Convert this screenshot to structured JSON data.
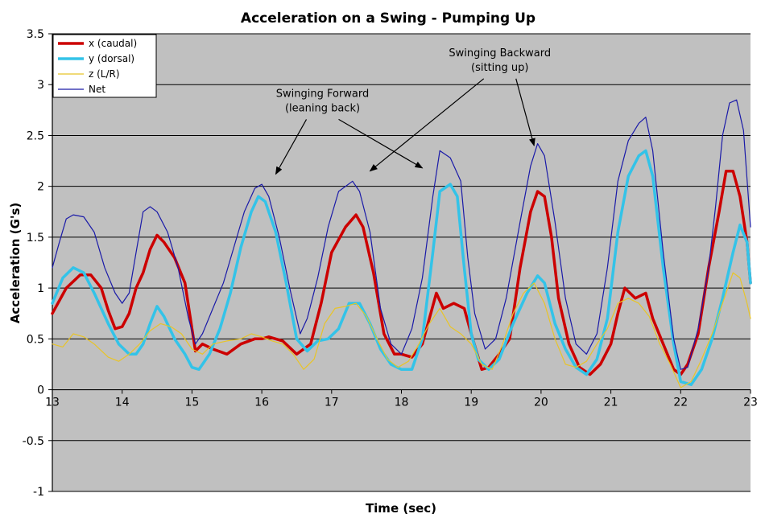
{
  "chart_data": {
    "type": "line",
    "title": "Acceleration on a Swing - Pumping Up",
    "xlabel": "Time (sec)",
    "ylabel": "Acceleration (G's)",
    "xlim": [
      13,
      23
    ],
    "ylim": [
      -1,
      3.5
    ],
    "xticks": [
      13,
      14,
      15,
      16,
      17,
      18,
      19,
      20,
      21,
      22,
      23
    ],
    "yticks": [
      -1,
      -0.5,
      0,
      0.5,
      1,
      1.5,
      2,
      2.5,
      3,
      3.5
    ],
    "ytick_labels": [
      "-1",
      "-0.5",
      "0",
      "0.5",
      "1",
      "1.5",
      "2",
      "2.5",
      "3",
      "3.5"
    ],
    "grid": "horizontal",
    "plot_background": "#c0c0c0",
    "legend_position": "top-left",
    "series": [
      {
        "name": "x (caudal)",
        "color": "#cc0000",
        "width": 3.5,
        "points": [
          [
            13.0,
            0.75
          ],
          [
            13.2,
            1.0
          ],
          [
            13.4,
            1.13
          ],
          [
            13.55,
            1.13
          ],
          [
            13.7,
            1.0
          ],
          [
            13.8,
            0.78
          ],
          [
            13.9,
            0.6
          ],
          [
            14.0,
            0.62
          ],
          [
            14.1,
            0.75
          ],
          [
            14.2,
            1.0
          ],
          [
            14.3,
            1.15
          ],
          [
            14.4,
            1.38
          ],
          [
            14.5,
            1.52
          ],
          [
            14.6,
            1.45
          ],
          [
            14.75,
            1.3
          ],
          [
            14.9,
            1.05
          ],
          [
            15.0,
            0.6
          ],
          [
            15.05,
            0.38
          ],
          [
            15.15,
            0.45
          ],
          [
            15.3,
            0.4
          ],
          [
            15.5,
            0.35
          ],
          [
            15.7,
            0.45
          ],
          [
            15.9,
            0.5
          ],
          [
            16.0,
            0.5
          ],
          [
            16.1,
            0.52
          ],
          [
            16.3,
            0.48
          ],
          [
            16.5,
            0.35
          ],
          [
            16.7,
            0.45
          ],
          [
            16.85,
            0.85
          ],
          [
            17.0,
            1.35
          ],
          [
            17.2,
            1.6
          ],
          [
            17.35,
            1.72
          ],
          [
            17.45,
            1.6
          ],
          [
            17.6,
            1.15
          ],
          [
            17.75,
            0.55
          ],
          [
            17.9,
            0.35
          ],
          [
            18.0,
            0.35
          ],
          [
            18.15,
            0.32
          ],
          [
            18.3,
            0.45
          ],
          [
            18.4,
            0.7
          ],
          [
            18.5,
            0.95
          ],
          [
            18.6,
            0.8
          ],
          [
            18.75,
            0.85
          ],
          [
            18.9,
            0.8
          ],
          [
            19.0,
            0.55
          ],
          [
            19.15,
            0.2
          ],
          [
            19.25,
            0.22
          ],
          [
            19.4,
            0.35
          ],
          [
            19.55,
            0.5
          ],
          [
            19.7,
            1.2
          ],
          [
            19.85,
            1.75
          ],
          [
            19.95,
            1.95
          ],
          [
            20.05,
            1.9
          ],
          [
            20.15,
            1.5
          ],
          [
            20.25,
            0.9
          ],
          [
            20.4,
            0.45
          ],
          [
            20.55,
            0.22
          ],
          [
            20.7,
            0.15
          ],
          [
            20.85,
            0.25
          ],
          [
            21.0,
            0.45
          ],
          [
            21.1,
            0.75
          ],
          [
            21.2,
            1.0
          ],
          [
            21.35,
            0.9
          ],
          [
            21.5,
            0.95
          ],
          [
            21.6,
            0.7
          ],
          [
            21.75,
            0.45
          ],
          [
            21.9,
            0.2
          ],
          [
            22.0,
            0.15
          ],
          [
            22.1,
            0.25
          ],
          [
            22.25,
            0.55
          ],
          [
            22.4,
            1.2
          ],
          [
            22.55,
            1.75
          ],
          [
            22.65,
            2.15
          ],
          [
            22.75,
            2.15
          ],
          [
            22.85,
            1.9
          ],
          [
            22.95,
            1.45
          ],
          [
            23.0,
            1.05
          ]
        ]
      },
      {
        "name": "y (dorsal)",
        "color": "#33c3e8",
        "width": 3.5,
        "points": [
          [
            13.0,
            0.85
          ],
          [
            13.15,
            1.1
          ],
          [
            13.3,
            1.2
          ],
          [
            13.45,
            1.15
          ],
          [
            13.6,
            0.95
          ],
          [
            13.8,
            0.65
          ],
          [
            13.95,
            0.45
          ],
          [
            14.1,
            0.35
          ],
          [
            14.2,
            0.35
          ],
          [
            14.3,
            0.45
          ],
          [
            14.4,
            0.65
          ],
          [
            14.5,
            0.82
          ],
          [
            14.6,
            0.72
          ],
          [
            14.75,
            0.5
          ],
          [
            14.9,
            0.35
          ],
          [
            15.0,
            0.22
          ],
          [
            15.1,
            0.2
          ],
          [
            15.25,
            0.35
          ],
          [
            15.4,
            0.6
          ],
          [
            15.55,
            0.95
          ],
          [
            15.7,
            1.4
          ],
          [
            15.85,
            1.75
          ],
          [
            15.95,
            1.9
          ],
          [
            16.05,
            1.85
          ],
          [
            16.2,
            1.55
          ],
          [
            16.35,
            1.05
          ],
          [
            16.5,
            0.5
          ],
          [
            16.65,
            0.38
          ],
          [
            16.8,
            0.48
          ],
          [
            16.95,
            0.5
          ],
          [
            17.1,
            0.6
          ],
          [
            17.25,
            0.85
          ],
          [
            17.4,
            0.85
          ],
          [
            17.55,
            0.65
          ],
          [
            17.7,
            0.4
          ],
          [
            17.85,
            0.25
          ],
          [
            18.0,
            0.2
          ],
          [
            18.15,
            0.2
          ],
          [
            18.3,
            0.5
          ],
          [
            18.45,
            1.35
          ],
          [
            18.55,
            1.95
          ],
          [
            18.7,
            2.02
          ],
          [
            18.8,
            1.9
          ],
          [
            18.9,
            1.2
          ],
          [
            19.0,
            0.55
          ],
          [
            19.1,
            0.3
          ],
          [
            19.25,
            0.2
          ],
          [
            19.4,
            0.3
          ],
          [
            19.6,
            0.65
          ],
          [
            19.8,
            0.95
          ],
          [
            19.95,
            1.12
          ],
          [
            20.05,
            1.05
          ],
          [
            20.2,
            0.65
          ],
          [
            20.35,
            0.4
          ],
          [
            20.5,
            0.22
          ],
          [
            20.65,
            0.15
          ],
          [
            20.8,
            0.3
          ],
          [
            20.95,
            0.7
          ],
          [
            21.1,
            1.55
          ],
          [
            21.25,
            2.1
          ],
          [
            21.4,
            2.3
          ],
          [
            21.5,
            2.35
          ],
          [
            21.6,
            2.1
          ],
          [
            21.75,
            1.2
          ],
          [
            21.9,
            0.45
          ],
          [
            22.0,
            0.08
          ],
          [
            22.15,
            0.05
          ],
          [
            22.3,
            0.2
          ],
          [
            22.45,
            0.5
          ],
          [
            22.6,
            0.9
          ],
          [
            22.75,
            1.35
          ],
          [
            22.85,
            1.62
          ],
          [
            22.95,
            1.45
          ],
          [
            23.0,
            1.05
          ]
        ]
      },
      {
        "name": "z (L/R)",
        "color": "#e8c428",
        "width": 1.2,
        "points": [
          [
            13.0,
            0.45
          ],
          [
            13.15,
            0.42
          ],
          [
            13.3,
            0.55
          ],
          [
            13.45,
            0.52
          ],
          [
            13.6,
            0.45
          ],
          [
            13.8,
            0.32
          ],
          [
            13.95,
            0.28
          ],
          [
            14.1,
            0.35
          ],
          [
            14.25,
            0.45
          ],
          [
            14.4,
            0.58
          ],
          [
            14.55,
            0.65
          ],
          [
            14.7,
            0.62
          ],
          [
            14.85,
            0.55
          ],
          [
            15.0,
            0.4
          ],
          [
            15.15,
            0.35
          ],
          [
            15.3,
            0.45
          ],
          [
            15.5,
            0.48
          ],
          [
            15.7,
            0.5
          ],
          [
            15.85,
            0.55
          ],
          [
            16.0,
            0.52
          ],
          [
            16.15,
            0.48
          ],
          [
            16.3,
            0.45
          ],
          [
            16.45,
            0.35
          ],
          [
            16.6,
            0.2
          ],
          [
            16.75,
            0.3
          ],
          [
            16.9,
            0.65
          ],
          [
            17.05,
            0.8
          ],
          [
            17.2,
            0.82
          ],
          [
            17.35,
            0.85
          ],
          [
            17.5,
            0.72
          ],
          [
            17.65,
            0.5
          ],
          [
            17.8,
            0.3
          ],
          [
            17.95,
            0.22
          ],
          [
            18.1,
            0.28
          ],
          [
            18.25,
            0.45
          ],
          [
            18.4,
            0.65
          ],
          [
            18.55,
            0.8
          ],
          [
            18.7,
            0.62
          ],
          [
            18.85,
            0.55
          ],
          [
            19.0,
            0.45
          ],
          [
            19.15,
            0.25
          ],
          [
            19.3,
            0.2
          ],
          [
            19.45,
            0.45
          ],
          [
            19.6,
            0.75
          ],
          [
            19.75,
            0.95
          ],
          [
            19.9,
            1.05
          ],
          [
            20.05,
            0.85
          ],
          [
            20.2,
            0.5
          ],
          [
            20.35,
            0.25
          ],
          [
            20.5,
            0.22
          ],
          [
            20.65,
            0.28
          ],
          [
            20.8,
            0.45
          ],
          [
            20.95,
            0.6
          ],
          [
            21.1,
            0.85
          ],
          [
            21.25,
            0.9
          ],
          [
            21.4,
            0.85
          ],
          [
            21.55,
            0.72
          ],
          [
            21.7,
            0.45
          ],
          [
            21.85,
            0.25
          ],
          [
            22.0,
            0.02
          ],
          [
            22.15,
            0.08
          ],
          [
            22.3,
            0.3
          ],
          [
            22.45,
            0.55
          ],
          [
            22.6,
            0.85
          ],
          [
            22.75,
            1.15
          ],
          [
            22.85,
            1.1
          ],
          [
            22.95,
            0.85
          ],
          [
            23.0,
            0.7
          ]
        ]
      },
      {
        "name": "Net",
        "color": "#1a1aa8",
        "width": 1.2,
        "points": [
          [
            13.0,
            1.2
          ],
          [
            13.1,
            1.45
          ],
          [
            13.2,
            1.68
          ],
          [
            13.3,
            1.72
          ],
          [
            13.45,
            1.7
          ],
          [
            13.6,
            1.55
          ],
          [
            13.75,
            1.2
          ],
          [
            13.9,
            0.95
          ],
          [
            14.0,
            0.85
          ],
          [
            14.1,
            0.95
          ],
          [
            14.2,
            1.35
          ],
          [
            14.3,
            1.75
          ],
          [
            14.4,
            1.8
          ],
          [
            14.5,
            1.75
          ],
          [
            14.65,
            1.55
          ],
          [
            14.8,
            1.2
          ],
          [
            14.95,
            0.7
          ],
          [
            15.05,
            0.45
          ],
          [
            15.15,
            0.55
          ],
          [
            15.3,
            0.8
          ],
          [
            15.45,
            1.05
          ],
          [
            15.6,
            1.4
          ],
          [
            15.75,
            1.75
          ],
          [
            15.9,
            1.98
          ],
          [
            16.0,
            2.02
          ],
          [
            16.1,
            1.9
          ],
          [
            16.25,
            1.5
          ],
          [
            16.4,
            1.0
          ],
          [
            16.55,
            0.55
          ],
          [
            16.65,
            0.7
          ],
          [
            16.8,
            1.1
          ],
          [
            16.95,
            1.6
          ],
          [
            17.1,
            1.95
          ],
          [
            17.3,
            2.05
          ],
          [
            17.4,
            1.95
          ],
          [
            17.55,
            1.55
          ],
          [
            17.7,
            0.8
          ],
          [
            17.85,
            0.45
          ],
          [
            18.0,
            0.35
          ],
          [
            18.15,
            0.6
          ],
          [
            18.3,
            1.1
          ],
          [
            18.45,
            1.9
          ],
          [
            18.55,
            2.35
          ],
          [
            18.7,
            2.28
          ],
          [
            18.85,
            2.05
          ],
          [
            18.95,
            1.3
          ],
          [
            19.05,
            0.75
          ],
          [
            19.2,
            0.4
          ],
          [
            19.35,
            0.5
          ],
          [
            19.5,
            0.9
          ],
          [
            19.7,
            1.65
          ],
          [
            19.85,
            2.2
          ],
          [
            19.95,
            2.42
          ],
          [
            20.05,
            2.3
          ],
          [
            20.2,
            1.65
          ],
          [
            20.35,
            0.9
          ],
          [
            20.5,
            0.45
          ],
          [
            20.65,
            0.35
          ],
          [
            20.8,
            0.55
          ],
          [
            20.95,
            1.2
          ],
          [
            21.1,
            2.05
          ],
          [
            21.25,
            2.45
          ],
          [
            21.4,
            2.62
          ],
          [
            21.5,
            2.68
          ],
          [
            21.6,
            2.35
          ],
          [
            21.75,
            1.35
          ],
          [
            21.9,
            0.5
          ],
          [
            22.0,
            0.2
          ],
          [
            22.1,
            0.22
          ],
          [
            22.25,
            0.6
          ],
          [
            22.4,
            1.2
          ],
          [
            22.5,
            1.8
          ],
          [
            22.6,
            2.5
          ],
          [
            22.7,
            2.82
          ],
          [
            22.8,
            2.85
          ],
          [
            22.9,
            2.55
          ],
          [
            23.0,
            1.6
          ]
        ]
      }
    ],
    "annotations": [
      {
        "lines": [
          "Swinging Forward",
          "(leaning back)"
        ],
        "text_anchor": [
          16.87,
          2.88
        ],
        "arrows_to": [
          [
            16.2,
            2.12
          ],
          [
            18.3,
            2.18
          ]
        ]
      },
      {
        "lines": [
          "Swinging Backward",
          "(sitting up)"
        ],
        "text_anchor": [
          19.41,
          3.28
        ],
        "arrows_to": [
          [
            17.55,
            2.15
          ],
          [
            19.9,
            2.4
          ]
        ]
      }
    ]
  }
}
